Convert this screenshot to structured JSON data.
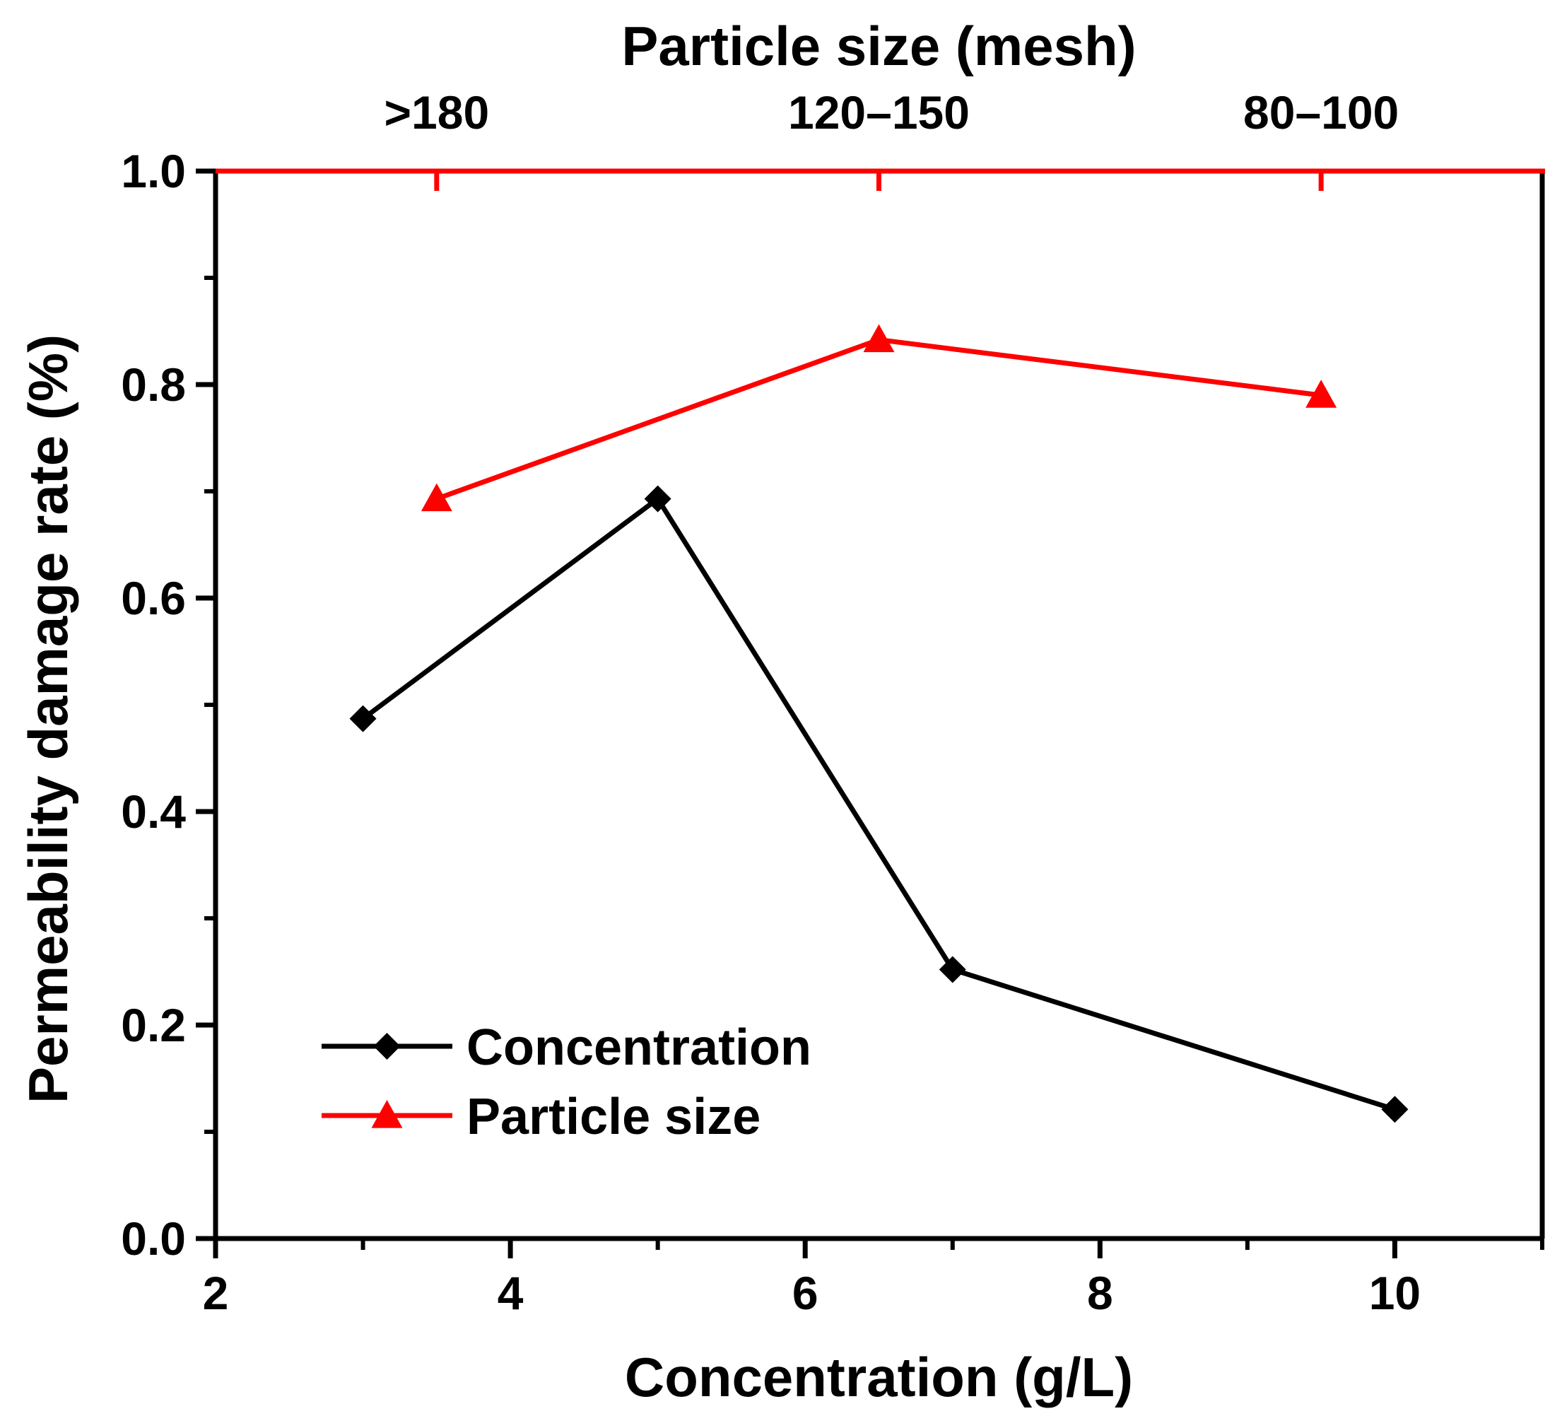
{
  "chart_data": {
    "type": "line",
    "title": "",
    "xlabel": "Concentration (g/L)",
    "x2label": "Particle size (mesh)",
    "ylabel": "Permeability damage rate (%)",
    "xlim": [
      2,
      11
    ],
    "ylim": [
      0,
      1.0
    ],
    "x_ticks": [
      2,
      4,
      6,
      8,
      10
    ],
    "x_tick_labels": [
      "2",
      "4",
      "6",
      "8",
      "10"
    ],
    "x_minor_ticks": [
      3,
      5,
      7,
      9,
      11
    ],
    "y_ticks": [
      0.0,
      0.2,
      0.4,
      0.6,
      0.8,
      1.0
    ],
    "y_tick_labels": [
      "0.0",
      "0.2",
      "0.4",
      "0.6",
      "0.8",
      "1.0"
    ],
    "y_minor_ticks": [
      0.1,
      0.3,
      0.5,
      0.7,
      0.9
    ],
    "top_ticks": [
      3.5,
      6.5,
      9.5
    ],
    "top_tick_labels": [
      ">180",
      "120–150",
      "80–100"
    ],
    "grid": false,
    "legend_position": "bottom-left",
    "series": [
      {
        "name": "Concentration",
        "axis": "bottom",
        "color": "#000000",
        "marker": "diamond",
        "x": [
          3,
          5,
          7,
          10
        ],
        "values": [
          0.487,
          0.693,
          0.252,
          0.121
        ]
      },
      {
        "name": "Particle size",
        "axis": "top",
        "color": "#ff0000",
        "marker": "triangle",
        "x": [
          3.5,
          6.5,
          9.5
        ],
        "categories": [
          ">180",
          "120–150",
          "80–100"
        ],
        "values": [
          0.693,
          0.842,
          0.79
        ]
      }
    ]
  }
}
